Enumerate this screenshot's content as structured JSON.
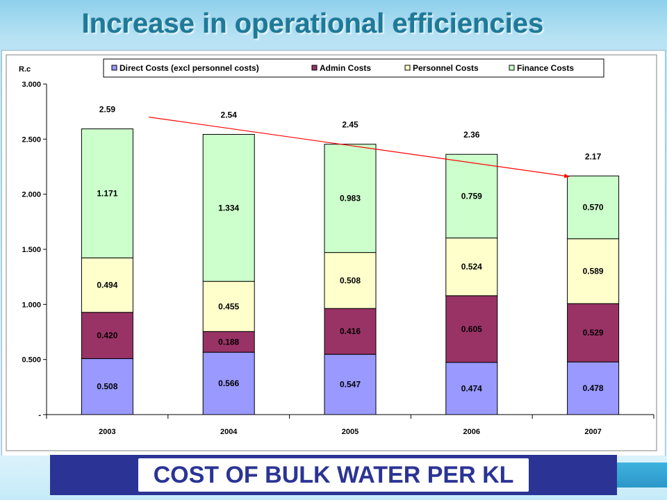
{
  "slide": {
    "title": "Increase in operational efficiencies",
    "footer": "COST OF BULK WATER PER KL"
  },
  "chart_data": {
    "type": "bar",
    "stacked": true,
    "ylabel": "R.c",
    "ylim": [
      0,
      3.0
    ],
    "yticks": [
      "-",
      "0.500",
      "1.000",
      "1.500",
      "2.000",
      "2.500",
      "3.000"
    ],
    "categories": [
      "2003",
      "2004",
      "2005",
      "2006",
      "2007"
    ],
    "series": [
      {
        "name": "Direct Costs (excl personnel costs)",
        "color": "#9999ff",
        "values": [
          0.508,
          0.566,
          0.547,
          0.474,
          0.478
        ],
        "labels": [
          "0.508",
          "0.566",
          "0.547",
          "0.474",
          "0.478"
        ]
      },
      {
        "name": "Admin Costs",
        "color": "#993366",
        "values": [
          0.42,
          0.188,
          0.416,
          0.605,
          0.529
        ],
        "labels": [
          "0.420",
          "0.188",
          "0.416",
          "0.605",
          "0.529"
        ]
      },
      {
        "name": "Personnel Costs",
        "color": "#ffffcc",
        "values": [
          0.494,
          0.455,
          0.508,
          0.524,
          0.589
        ],
        "labels": [
          "0.494",
          "0.455",
          "0.508",
          "0.524",
          "0.589"
        ]
      },
      {
        "name": "Finance Costs",
        "color": "#ccffcc",
        "values": [
          1.171,
          1.334,
          0.983,
          0.759,
          0.57
        ],
        "labels": [
          "1.171",
          "1.334",
          "0.983",
          "0.759",
          "0.570"
        ]
      }
    ],
    "totals": [
      "2.59",
      "2.54",
      "2.45",
      "2.36",
      "2.17"
    ],
    "trend_arrow": {
      "color": "#ff0000",
      "from_category": "2003",
      "to_category": "2007",
      "from_value": 2.7,
      "to_value": 2.16
    },
    "legend_position": "top",
    "grid": false
  }
}
